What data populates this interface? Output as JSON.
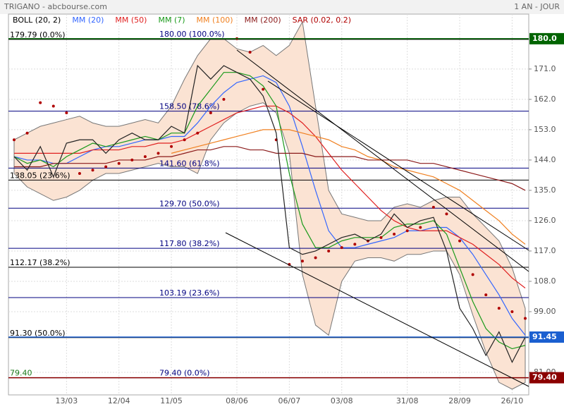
{
  "header": {
    "title": "TRIGANO - abcbourse.com",
    "period": "1 AN - JOUR"
  },
  "chart_data": {
    "type": "line",
    "categories": [
      null,
      null,
      null,
      null,
      "13/03",
      null,
      null,
      null,
      "12/04",
      null,
      null,
      null,
      "11/05",
      null,
      null,
      null,
      null,
      "08/06",
      null,
      null,
      null,
      "06/07",
      null,
      null,
      null,
      "03/08",
      null,
      null,
      null,
      null,
      "31/08",
      null,
      null,
      null,
      "28/09",
      null,
      null,
      null,
      "26/10",
      null
    ],
    "ylim": [
      74.3,
      187.3
    ],
    "yticks": [
      {
        "value": 81,
        "label": "81.00"
      },
      {
        "value": 99,
        "label": "99.00"
      },
      {
        "value": 108,
        "label": "108.0"
      },
      {
        "value": 117,
        "label": "117.0"
      },
      {
        "value": 126,
        "label": "126.0"
      },
      {
        "value": 135,
        "label": "135.0"
      },
      {
        "value": 144,
        "label": "144.0"
      },
      {
        "value": 153,
        "label": "153.0"
      },
      {
        "value": 162,
        "label": "162.0"
      },
      {
        "value": 171,
        "label": "171.0"
      }
    ],
    "grid": true,
    "bollinger": {
      "name": "BOLL (20, 2)",
      "color": "#000000",
      "fill": "#fbe3d3",
      "upper": [
        150,
        152,
        154,
        155,
        156,
        157,
        155,
        154,
        154,
        155,
        156,
        155,
        160,
        168,
        175,
        180,
        180,
        177,
        176,
        178,
        175,
        178,
        185,
        160,
        135,
        128,
        127,
        126,
        126,
        130,
        131,
        130,
        132,
        133,
        133,
        128,
        124,
        120,
        112,
        100
      ],
      "lower": [
        140,
        136,
        134,
        132,
        133,
        135,
        138,
        140,
        140,
        141,
        142,
        143,
        142,
        142,
        140,
        150,
        155,
        158,
        160,
        161,
        158,
        146,
        110,
        95,
        92,
        108,
        114,
        115,
        115,
        114,
        116,
        116,
        117,
        117,
        110,
        98,
        87,
        78,
        76,
        78
      ]
    },
    "series": [
      {
        "name": "MM (20)",
        "color": "#3366ff",
        "values": [
          145,
          144,
          144,
          143,
          143,
          145,
          147,
          148,
          148,
          149,
          150,
          150,
          151,
          151,
          155,
          160,
          164,
          167,
          168,
          169,
          167,
          160,
          148,
          135,
          123,
          118,
          118,
          119,
          120,
          121,
          123,
          123,
          124,
          124,
          121,
          116,
          110,
          104,
          97,
          92
        ]
      },
      {
        "name": "MM (50)",
        "color": "#e02020",
        "values": [
          146,
          146,
          146,
          146,
          146,
          146,
          147,
          147,
          147,
          148,
          148,
          149,
          149,
          150,
          152,
          154,
          156,
          158,
          159,
          160,
          160,
          158,
          155,
          151,
          146,
          141,
          137,
          133,
          129,
          126,
          124,
          123,
          123,
          123,
          121,
          119,
          116,
          113,
          109,
          106
        ]
      },
      {
        "name": "MM (7)",
        "color": "#1a9a1a",
        "values": [
          145,
          143,
          144,
          142,
          145,
          147,
          149,
          148,
          149,
          150,
          151,
          150,
          152,
          152,
          160,
          165,
          170,
          170,
          169,
          166,
          160,
          140,
          125,
          118,
          118,
          120,
          121,
          121,
          121,
          124,
          125,
          125,
          126,
          122,
          112,
          102,
          94,
          90,
          88,
          89
        ]
      },
      {
        "name": "MM (100)",
        "color": "#f08020",
        "values": [
          null,
          null,
          null,
          null,
          null,
          null,
          null,
          null,
          null,
          null,
          null,
          null,
          146,
          147,
          148,
          149,
          150,
          151,
          152,
          153,
          153,
          153,
          152,
          151,
          150,
          148,
          147,
          145,
          144,
          142,
          141,
          140,
          139,
          137,
          135,
          132,
          129,
          126,
          122,
          119
        ]
      },
      {
        "name": "MM (200)",
        "color": "#8b1a1a",
        "values": [
          142,
          142,
          142,
          143,
          143,
          143,
          143,
          143,
          144,
          144,
          144,
          145,
          145,
          146,
          147,
          147,
          148,
          148,
          147,
          147,
          146,
          146,
          146,
          145,
          145,
          145,
          145,
          144,
          144,
          144,
          144,
          143,
          143,
          142,
          141,
          140,
          139,
          138,
          137,
          135
        ]
      },
      {
        "name": "SAR (0.02, 0.2)",
        "color": "#b00000",
        "dots": true,
        "values": [
          150,
          152,
          161,
          160,
          158,
          140,
          141,
          142,
          143,
          144,
          145,
          146,
          148,
          150,
          152,
          158,
          162,
          180,
          176,
          165,
          150,
          113,
          114,
          115,
          117,
          118,
          119,
          120,
          121,
          122,
          123,
          124,
          130,
          128,
          120,
          110,
          104,
          100,
          99,
          97
        ]
      },
      {
        "name": "TRIGANO",
        "color": "#222222",
        "values": [
          145,
          141,
          148,
          139,
          149,
          150,
          150,
          146,
          150,
          152,
          150,
          150,
          154,
          152,
          172,
          168,
          172,
          170,
          168,
          163,
          152,
          118,
          116,
          117,
          119,
          121,
          122,
          120,
          122,
          128,
          124,
          126,
          127,
          117,
          100,
          94,
          86,
          93,
          84,
          91.45
        ]
      }
    ],
    "levels_1": [
      {
        "value": 179.79,
        "label": "179.79  (0.0%)",
        "color": "#000000"
      },
      {
        "value": 138.05,
        "label": "138.05  (23.6%)",
        "color": "#000000"
      },
      {
        "value": 112.17,
        "label": "112.17  (38.2%)",
        "color": "#000000"
      },
      {
        "value": 91.3,
        "label": "91.30  (50.0%)",
        "color": "#000000"
      },
      {
        "value": 79.4,
        "label": "79.40",
        "color": "#1a7a1a"
      }
    ],
    "levels_2": [
      {
        "value": 180.0,
        "label": "180.00  (100.0%)",
        "color": "#000080"
      },
      {
        "value": 158.5,
        "label": "158.50  (78.6%)",
        "color": "#000080"
      },
      {
        "value": 141.6,
        "label": "141.60  (61.8%)",
        "color": "#000080"
      },
      {
        "value": 129.7,
        "label": "129.70  (50.0%)",
        "color": "#000080"
      },
      {
        "value": 117.8,
        "label": "117.80  (38.2%)",
        "color": "#000080"
      },
      {
        "value": 103.19,
        "label": "103.19  (23.6%)",
        "color": "#000080"
      },
      {
        "value": 79.4,
        "label": "79.40  (0.0%)",
        "color": "#000080"
      }
    ],
    "price_markers": [
      {
        "value": 180.0,
        "label": "180.0",
        "color": "#006400"
      },
      {
        "value": 91.45,
        "label": "91.45",
        "color": "#1a5fd0"
      },
      {
        "value": 79.4,
        "label": "79.40",
        "color": "#8b0000"
      }
    ]
  }
}
